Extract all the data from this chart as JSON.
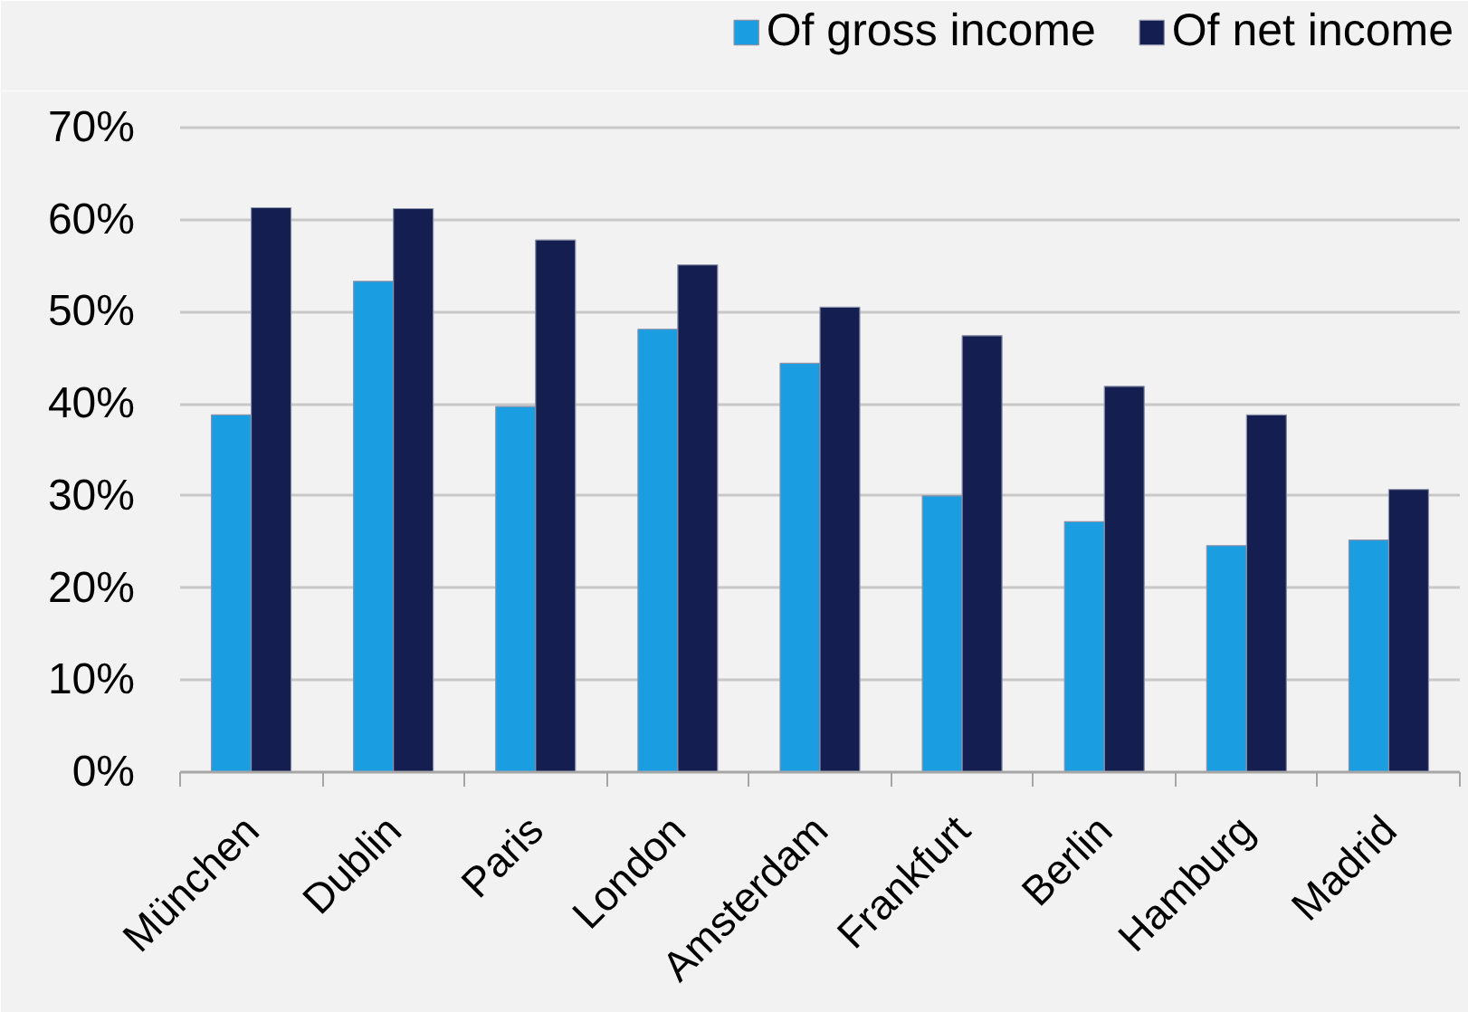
{
  "chart_data": {
    "type": "bar",
    "categories": [
      "München",
      "Dublin",
      "Paris",
      "London",
      "Amsterdam",
      "Frankfurt",
      "Berlin",
      "Hamburg",
      "Madrid"
    ],
    "series": [
      {
        "name": "Of gross income",
        "color": "#1b9de2",
        "values": [
          38.8,
          53.3,
          39.7,
          48.1,
          44.4,
          30.0,
          27.2,
          24.6,
          25.2
        ]
      },
      {
        "name": "Of net income",
        "color": "#141e50",
        "values": [
          61.3,
          61.2,
          57.8,
          55.1,
          50.5,
          47.4,
          41.9,
          38.8,
          30.7
        ]
      }
    ],
    "ylim": [
      0,
      70
    ],
    "yticks": [
      {
        "value": 0,
        "label": "0%"
      },
      {
        "value": 10,
        "label": "10%"
      },
      {
        "value": 20,
        "label": "20%"
      },
      {
        "value": 30,
        "label": "30%"
      },
      {
        "value": 40,
        "label": "40%"
      },
      {
        "value": 50,
        "label": "50%"
      },
      {
        "value": 60,
        "label": "60%"
      },
      {
        "value": 70,
        "label": "70%"
      }
    ],
    "grid": "y",
    "legend": "top right"
  }
}
